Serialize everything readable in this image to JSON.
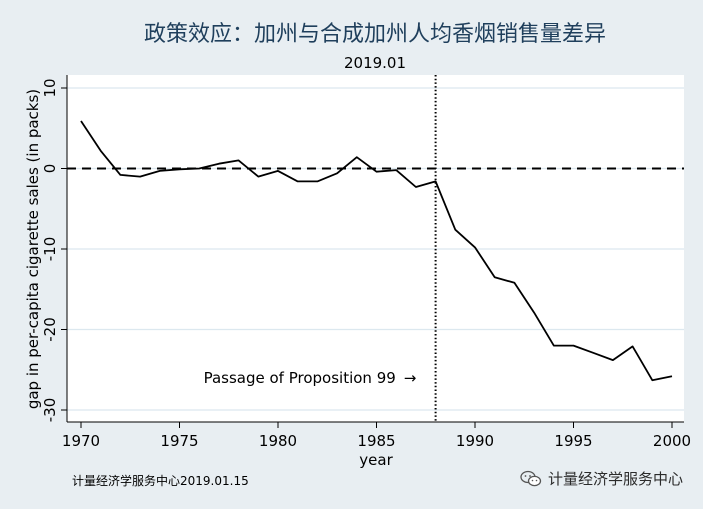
{
  "chart_data": {
    "type": "line",
    "title": "政策效应：加州与合成加州人均香烟销售量差异",
    "subtitle": "2019.01",
    "xlabel": "year",
    "ylabel": "gap in per-capita cigarette sales (in packs)",
    "xlim": [
      1970,
      2000
    ],
    "ylim": [
      -30,
      10
    ],
    "xticks": [
      1970,
      1975,
      1980,
      1985,
      1990,
      1995,
      2000
    ],
    "yticks": [
      10,
      0,
      -10,
      -20,
      -30
    ],
    "grid": "horizontal",
    "series": [
      {
        "x": [
          1970,
          1971,
          1972,
          1973,
          1974,
          1975,
          1976,
          1977,
          1978,
          1979,
          1980,
          1981,
          1982,
          1983,
          1984,
          1985,
          1986,
          1987,
          1988,
          1989,
          1990,
          1991,
          1992,
          1993,
          1994,
          1995,
          1996,
          1997,
          1998,
          1999,
          2000
        ],
        "values": [
          5.9,
          2.2,
          -0.8,
          -1.0,
          -0.3,
          -0.1,
          0.0,
          0.6,
          1.0,
          -1.0,
          -0.3,
          -1.6,
          -1.6,
          -0.6,
          1.4,
          -0.4,
          -0.2,
          -2.3,
          -1.6,
          -7.6,
          -9.8,
          -13.5,
          -14.2,
          -17.9,
          -22.0,
          -22.0,
          -22.9,
          -23.8,
          -22.1,
          -26.3,
          -25.8
        ]
      }
    ],
    "reference_lines": [
      {
        "orientation": "horizontal",
        "value": 0,
        "style": "dashed"
      },
      {
        "orientation": "vertical",
        "value": 1988,
        "style": "dotted"
      }
    ],
    "annotation": {
      "text": "Passage of Proposition 99",
      "arrow": "→",
      "x_end": 1987.3,
      "y": -26
    }
  },
  "footer": {
    "note": "计量经济学服务中心2019.01.15",
    "watermark": "计量经济学服务中心",
    "watermark_icon": "wechat-icon"
  },
  "colors": {
    "background": "#e8eef2",
    "plot_area": "#ffffff",
    "title": "#1f3f5c",
    "grid": "#dce8ef",
    "line": "#000000"
  }
}
